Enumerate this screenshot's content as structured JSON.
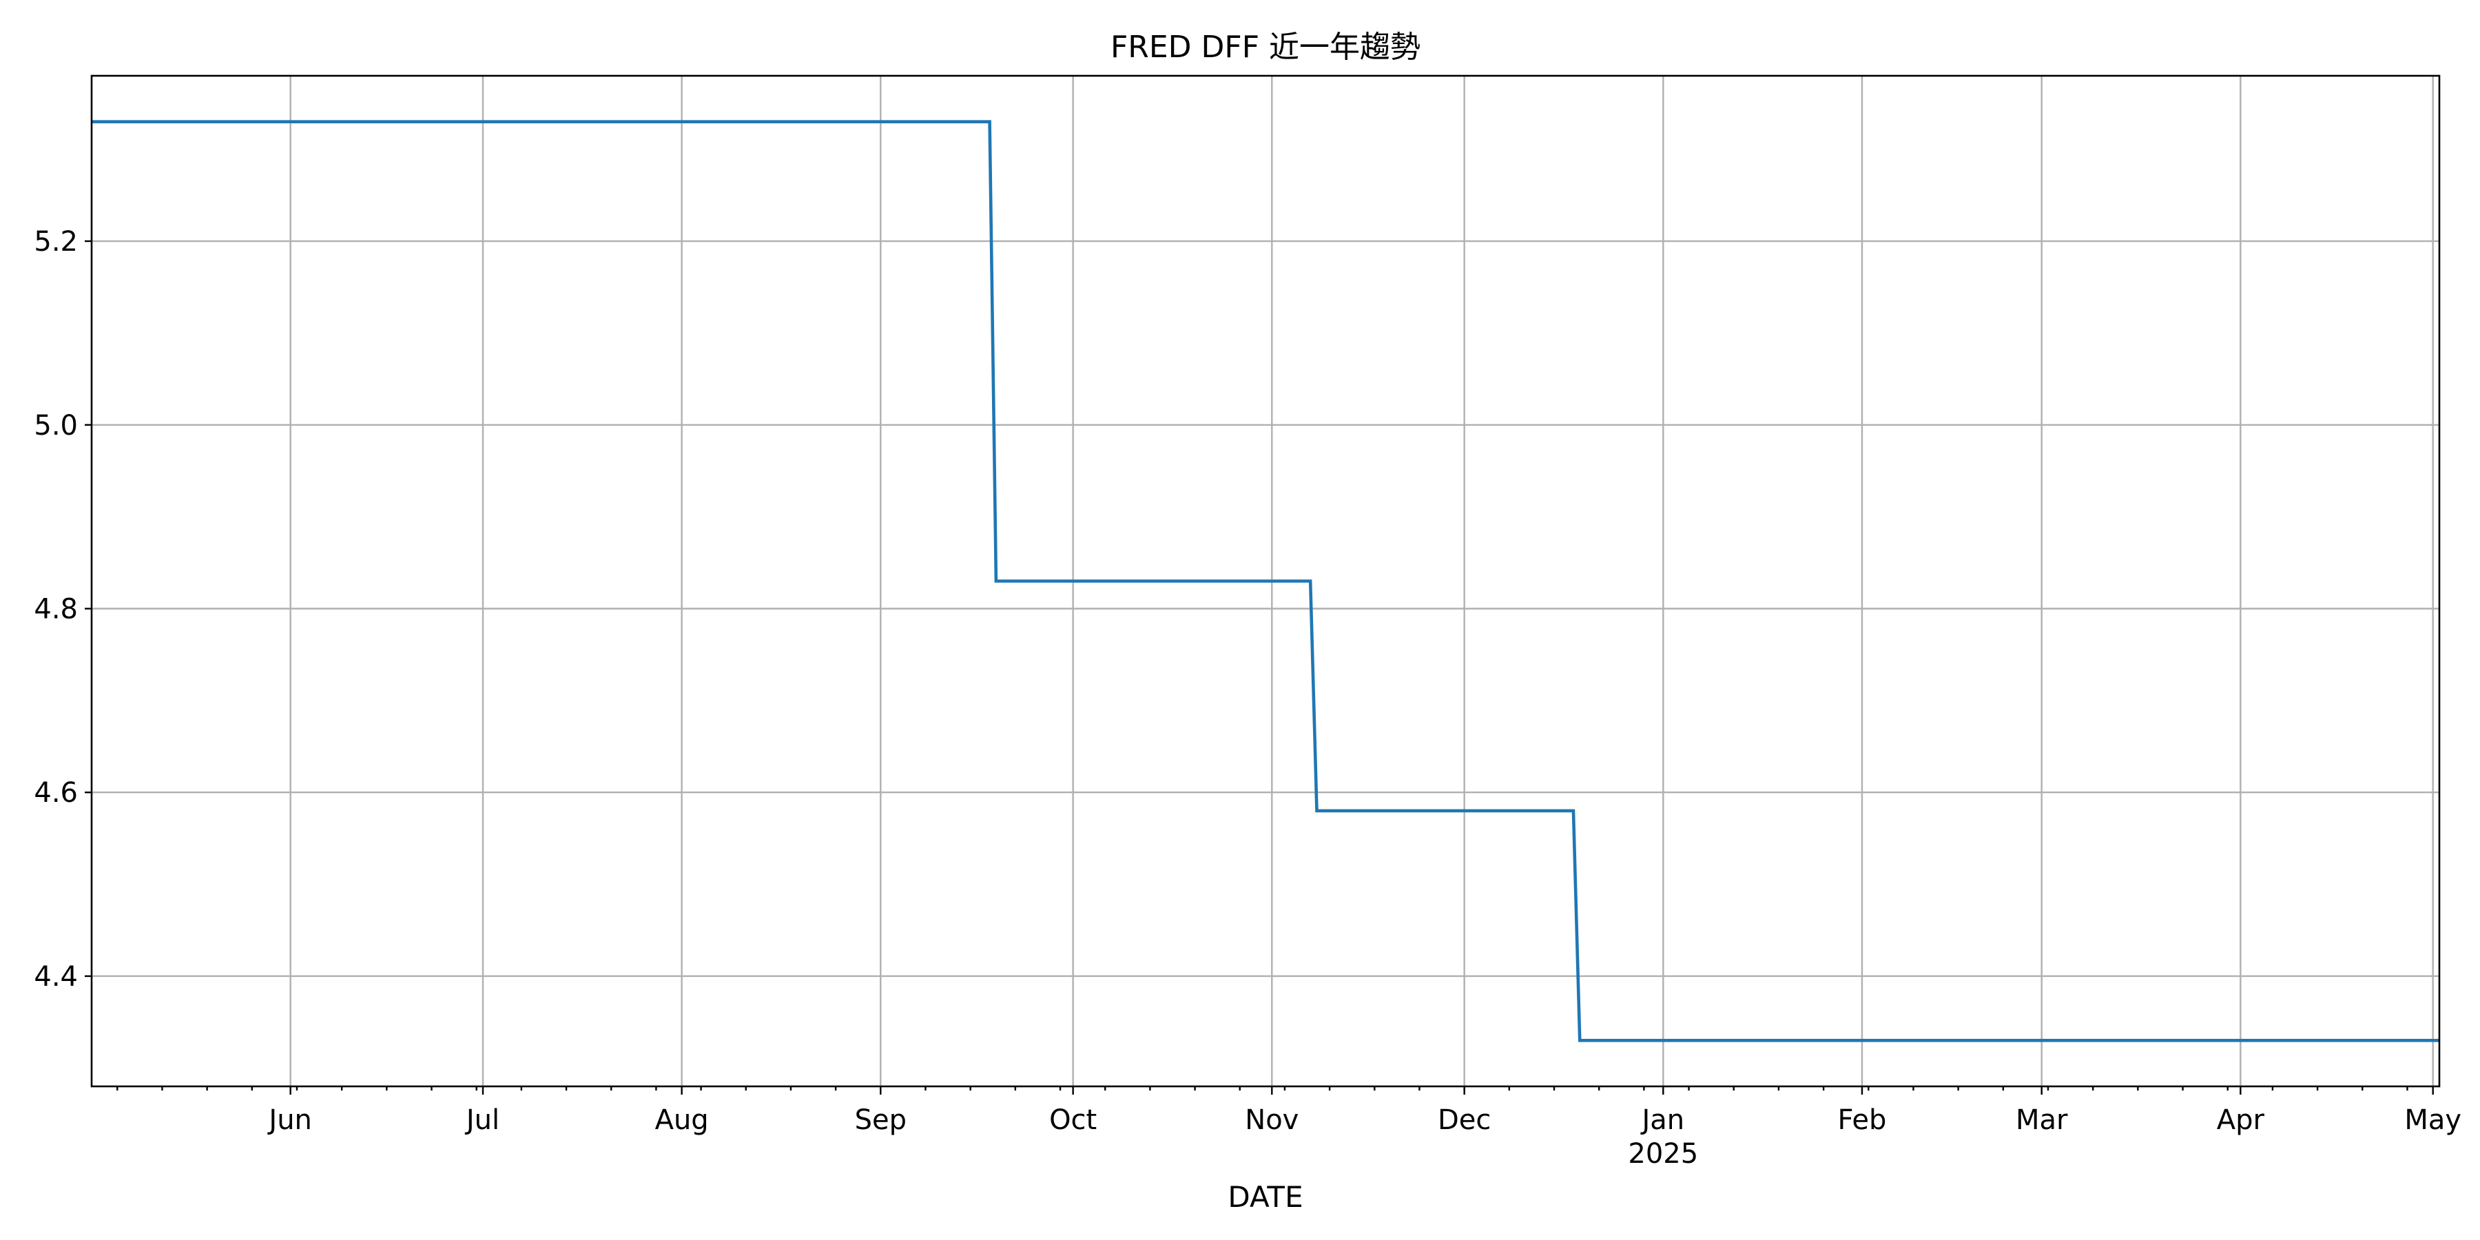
{
  "chart_data": {
    "type": "line",
    "title": "FRED DFF 近一年趨勢",
    "xlabel": "DATE",
    "ylabel": "",
    "grid": true,
    "colors": {
      "series": "#1f77b4",
      "grid": "#b0b0b0",
      "frame": "#000000"
    },
    "xlim": [
      "2024-05-01",
      "2025-05-02"
    ],
    "ylim": [
      4.28,
      5.38
    ],
    "x_ticks": [
      {
        "date": "2024-06-01",
        "label": "Jun"
      },
      {
        "date": "2024-07-01",
        "label": "Jul"
      },
      {
        "date": "2024-08-01",
        "label": "Aug"
      },
      {
        "date": "2024-09-01",
        "label": "Sep"
      },
      {
        "date": "2024-10-01",
        "label": "Oct"
      },
      {
        "date": "2024-11-01",
        "label": "Nov"
      },
      {
        "date": "2024-12-01",
        "label": "Dec"
      },
      {
        "date": "2025-01-01",
        "label": "Jan",
        "sublabel": "2025"
      },
      {
        "date": "2025-02-01",
        "label": "Feb"
      },
      {
        "date": "2025-03-01",
        "label": "Mar"
      },
      {
        "date": "2025-04-01",
        "label": "Apr"
      },
      {
        "date": "2025-05-01",
        "label": "May"
      }
    ],
    "y_ticks": [
      {
        "value": 4.4,
        "label": "4.4"
      },
      {
        "value": 4.6,
        "label": "4.6"
      },
      {
        "value": 4.8,
        "label": "4.8"
      },
      {
        "value": 5.0,
        "label": "5.0"
      },
      {
        "value": 5.2,
        "label": "5.2"
      }
    ],
    "series": [
      {
        "x": [
          "2024-05-01",
          "2024-09-18",
          "2024-09-19",
          "2024-11-07",
          "2024-11-08",
          "2024-12-18",
          "2024-12-19",
          "2025-05-02"
        ],
        "y": [
          5.33,
          5.33,
          4.83,
          4.83,
          4.58,
          4.58,
          4.33,
          4.33
        ]
      }
    ]
  }
}
